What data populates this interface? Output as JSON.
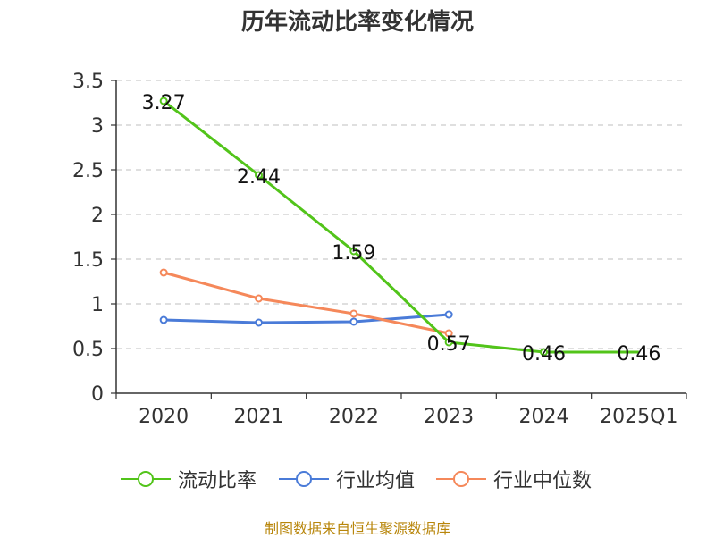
{
  "chart_data": {
    "type": "line",
    "title": "历年流动比率变化情况",
    "categories": [
      "2020",
      "2021",
      "2022",
      "2023",
      "2024",
      "2025Q1"
    ],
    "ylim": [
      0,
      3.5
    ],
    "yticks": [
      "0",
      "0.5",
      "1",
      "1.5",
      "2",
      "2.5",
      "3",
      "3.5"
    ],
    "ytick_values": [
      0,
      0.5,
      1,
      1.5,
      2,
      2.5,
      3,
      3.5
    ],
    "grid": true,
    "legend_position": "bottom",
    "series": [
      {
        "name": "流动比率",
        "color": "#52c41a",
        "values": [
          3.27,
          2.44,
          1.59,
          0.57,
          0.46,
          0.46
        ],
        "labels": [
          "3.27",
          "2.44",
          "1.59",
          "0.57",
          "0.46",
          "0.46"
        ],
        "markers_at": [
          0,
          1,
          2,
          3,
          4
        ]
      },
      {
        "name": "行业均值",
        "color": "#4a7bd8",
        "values": [
          0.82,
          0.79,
          0.8,
          0.88,
          null,
          null
        ]
      },
      {
        "name": "行业中位数",
        "color": "#f5885a",
        "values": [
          1.35,
          1.06,
          0.89,
          0.67,
          null,
          null
        ]
      }
    ]
  },
  "source": "制图数据来自恒生聚源数据库"
}
